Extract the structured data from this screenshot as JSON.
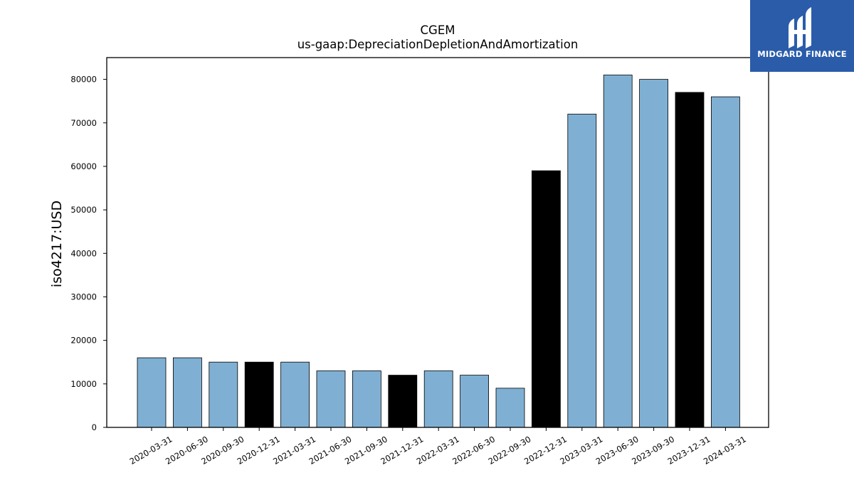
{
  "chart_data": {
    "type": "bar",
    "title": "CGEM",
    "subtitle": "us-gaap:DepreciationDepletionAndAmortization",
    "xlabel": "",
    "ylabel": "iso4217:USD",
    "ylim": [
      0,
      85000
    ],
    "yticks": [
      0,
      10000,
      20000,
      30000,
      40000,
      50000,
      60000,
      70000,
      80000
    ],
    "categories": [
      "2020-03-31",
      "2020-06-30",
      "2020-09-30",
      "2020-12-31",
      "2021-03-31",
      "2021-06-30",
      "2021-09-30",
      "2021-12-31",
      "2022-03-31",
      "2022-06-30",
      "2022-09-30",
      "2022-12-31",
      "2023-03-31",
      "2023-06-30",
      "2023-09-30",
      "2023-12-31",
      "2024-03-31"
    ],
    "values": [
      16000,
      16000,
      15000,
      15000,
      15000,
      13000,
      13000,
      12000,
      13000,
      12000,
      9000,
      59000,
      72000,
      81000,
      80000,
      77000,
      76000
    ],
    "highlight": [
      false,
      false,
      false,
      true,
      false,
      false,
      false,
      true,
      false,
      false,
      false,
      true,
      false,
      false,
      false,
      true,
      false
    ],
    "colors": {
      "bar": "#7fb0d3",
      "highlight": "#000000",
      "edge": "#000000"
    },
    "grid": false,
    "legend": "none"
  },
  "logo": {
    "text": "MIDGARD FINANCE",
    "icon": "midgard-logo-icon",
    "background": "#2a5caa"
  }
}
